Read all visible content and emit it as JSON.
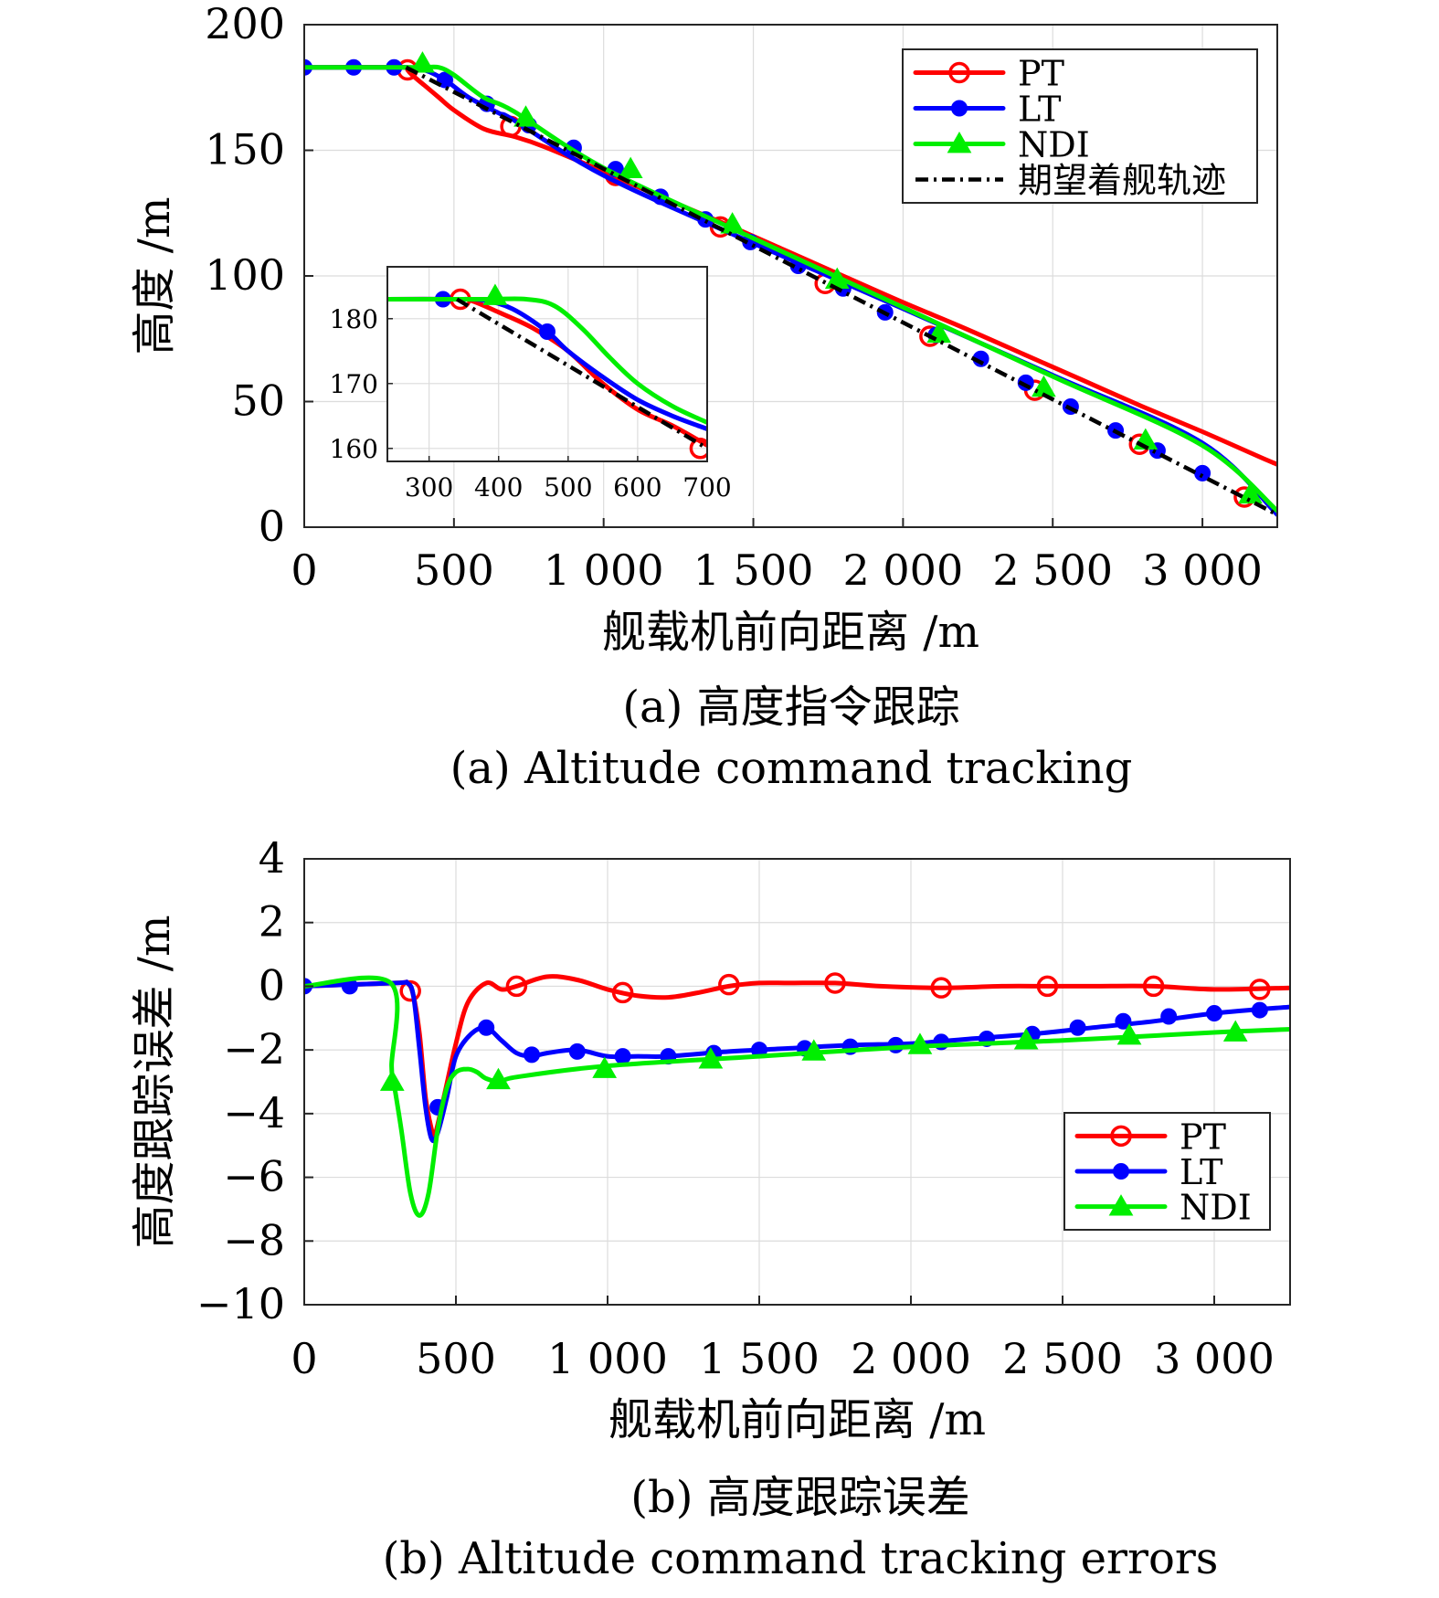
{
  "chart_data": [
    {
      "type": "line",
      "xlabel": "舰载机前向距离 /m",
      "ylabel": "高度 /m",
      "xlim": [
        0,
        3250
      ],
      "ylim": [
        0,
        200
      ],
      "xticks": [
        0,
        500,
        1000,
        1500,
        2000,
        2500,
        3000
      ],
      "xtick_labels": [
        "0",
        "500",
        "1 000",
        "1 500",
        "2 000",
        "2 500",
        "3 000"
      ],
      "yticks": [
        0,
        50,
        100,
        150,
        200
      ],
      "ytick_labels": [
        "0",
        "50",
        "100",
        "150",
        "200"
      ],
      "grid": true,
      "legend_position": "top-right",
      "caption_cn": "(a) 高度指令跟踪",
      "caption_en": "(a) Altitude command tracking",
      "series": [
        {
          "name": "PT",
          "color": "#ff0000",
          "marker": "circle-open",
          "x": [
            0,
            340,
            345,
            360,
            400,
            450,
            500,
            600,
            700,
            800,
            1000,
            1200,
            1400,
            1600,
            1800,
            2000,
            2200,
            2400,
            2600,
            2800,
            3000,
            3200,
            3250
          ],
          "y": [
            183,
            183,
            182,
            180,
            176,
            171,
            166,
            158.5,
            155.5,
            151.5,
            141.5,
            131,
            121,
            110.5,
            100,
            89.5,
            79.5,
            69,
            58.5,
            48,
            38,
            27.5,
            25
          ],
          "markers_x": [
            345,
            690,
            1040,
            1390,
            1740,
            2090,
            2440,
            2790,
            3140
          ],
          "markers_y": [
            182,
            159.5,
            140,
            119.5,
            97,
            76,
            54.5,
            33,
            12
          ]
        },
        {
          "name": "LT",
          "color": "#0000ff",
          "marker": "dot",
          "x": [
            0,
            300,
            340,
            400,
            470,
            550,
            650,
            700,
            1000,
            1500,
            2000,
            2500,
            3000,
            3250
          ],
          "y": [
            183,
            183,
            183,
            182,
            178,
            171,
            164.8,
            162,
            140,
            113,
            87,
            60.5,
            33.5,
            5
          ],
          "markers_x": [
            0,
            165,
            300,
            470,
            610,
            750,
            900,
            1040,
            1190,
            1340,
            1490,
            1650,
            1800,
            1940,
            2110,
            2260,
            2410,
            2560,
            2710,
            2850,
            3000
          ],
          "markers_y": [
            183,
            183,
            183,
            178,
            168.5,
            160,
            151,
            142.5,
            131.5,
            122.5,
            113.5,
            104,
            95,
            85.5,
            76.5,
            67,
            57.5,
            48,
            38.5,
            30.5,
            21.5
          ]
        },
        {
          "name": "NDI",
          "color": "#00ee00",
          "marker": "triangle",
          "x": [
            0,
            340,
            380,
            400,
            450,
            500,
            600,
            700,
            1000,
            1500,
            2000,
            2500,
            3000,
            3250
          ],
          "y": [
            183,
            183,
            183,
            183,
            183,
            180,
            171,
            165.5,
            143,
            115,
            87.5,
            60,
            32.5,
            6.5
          ],
          "markers_x": [
            395,
            740,
            1090,
            1430,
            1780,
            2120,
            2470,
            2810,
            3160
          ],
          "markers_y": [
            184.5,
            163,
            142.5,
            120.5,
            98.5,
            77,
            55.5,
            34.5,
            13
          ]
        },
        {
          "name": "期望着舰轨迹",
          "color": "#000000",
          "dash": "dashdot",
          "x": [
            340,
            3250
          ],
          "y": [
            183,
            5
          ]
        }
      ],
      "inset": {
        "xlim": [
          240,
          700
        ],
        "ylim": [
          158,
          188
        ],
        "xticks": [
          300,
          400,
          500,
          600,
          700
        ],
        "xtick_labels": [
          "300",
          "400",
          "500",
          "600",
          "700"
        ],
        "yticks": [
          160,
          170,
          180
        ],
        "ytick_labels": [
          "160",
          "170",
          "180"
        ],
        "series": [
          {
            "name": "PT",
            "x": [
              240,
              340,
              360,
              400,
              450,
              500,
              550,
              600,
              650,
              700
            ],
            "y": [
              183,
              183,
              182.8,
              181,
              178.5,
              175,
              170,
              166,
              163.5,
              160.5
            ],
            "markers_x": [
              345,
              690
            ],
            "markers_y": [
              183,
              160
            ]
          },
          {
            "name": "LT",
            "x": [
              240,
              340,
              380,
              420,
              470,
              500,
              550,
              600,
              650,
              700
            ],
            "y": [
              183,
              183,
              182.8,
              181.5,
              178,
              175,
              171,
              167.5,
              165,
              163
            ],
            "markers_x": [
              320,
              470
            ],
            "markers_y": [
              183,
              178
            ]
          },
          {
            "name": "NDI",
            "x": [
              240,
              380,
              440,
              480,
              520,
              560,
              600,
              650,
              700
            ],
            "y": [
              183,
              183,
              183,
              182,
              178.5,
              174,
              170,
              166.5,
              164
            ],
            "markers_x": [
              395
            ],
            "markers_y": [
              183.5
            ]
          },
          {
            "name": "期望着舰轨迹",
            "x": [
              340,
              700
            ],
            "y": [
              183,
              160
            ]
          }
        ]
      }
    },
    {
      "type": "line",
      "xlabel": "舰载机前向距离 /m",
      "ylabel": "高度跟踪误差 /m",
      "xlim": [
        0,
        3250
      ],
      "ylim": [
        -10,
        4
      ],
      "xticks": [
        0,
        500,
        1000,
        1500,
        2000,
        2500,
        3000
      ],
      "xtick_labels": [
        "0",
        "500",
        "1 000",
        "1 500",
        "2 000",
        "2 500",
        "3 000"
      ],
      "yticks": [
        -10,
        -8,
        -6,
        -4,
        -2,
        0,
        2,
        4
      ],
      "ytick_labels": [
        "−10",
        "−8",
        "−6",
        "−4",
        "−2",
        "0",
        "2",
        "4"
      ],
      "grid": true,
      "legend_position": "lower-right",
      "caption_cn": "(b) 高度跟踪误差",
      "caption_en": "(b) Altitude command tracking errors",
      "series": [
        {
          "name": "PT",
          "color": "#ff0000",
          "marker": "circle-open",
          "x": [
            0,
            300,
            340,
            360,
            380,
            400,
            420,
            430,
            460,
            500,
            540,
            600,
            650,
            700,
            800,
            900,
            1000,
            1100,
            1200,
            1300,
            1400,
            1500,
            1600,
            1750,
            1900,
            2100,
            2300,
            2450,
            2600,
            2800,
            3000,
            3250
          ],
          "y": [
            0,
            0.1,
            0.1,
            -0.3,
            -1.5,
            -3.5,
            -4.5,
            -4.7,
            -3.5,
            -1.8,
            -0.5,
            0.1,
            -0.1,
            0.0,
            0.3,
            0.2,
            -0.1,
            -0.3,
            -0.35,
            -0.2,
            0.0,
            0.1,
            0.1,
            0.1,
            0.0,
            -0.05,
            0.0,
            0.0,
            0.0,
            0.0,
            -0.1,
            -0.05
          ],
          "markers_x": [
            350,
            700,
            1050,
            1400,
            1750,
            2100,
            2450,
            2800,
            3150
          ],
          "markers_y": [
            -0.15,
            0.0,
            -0.2,
            0.05,
            0.1,
            -0.05,
            0.0,
            0.0,
            -0.1
          ]
        },
        {
          "name": "LT",
          "color": "#0000ff",
          "marker": "dot",
          "x": [
            0,
            300,
            340,
            360,
            380,
            400,
            420,
            440,
            470,
            500,
            550,
            600,
            650,
            700,
            750,
            800,
            900,
            1000,
            1100,
            1200,
            1400,
            1600,
            1800,
            2000,
            2200,
            2400,
            2600,
            2800,
            3000,
            3250
          ],
          "y": [
            0,
            0.1,
            0.1,
            -0.3,
            -2.0,
            -3.8,
            -4.8,
            -4.6,
            -3.5,
            -2.2,
            -1.5,
            -1.3,
            -1.7,
            -2.1,
            -2.2,
            -2.1,
            -2.0,
            -2.2,
            -2.2,
            -2.2,
            -2.05,
            -1.95,
            -1.85,
            -1.8,
            -1.65,
            -1.5,
            -1.3,
            -1.1,
            -0.85,
            -0.65
          ],
          "markers_x": [
            0,
            150,
            440,
            600,
            750,
            900,
            1050,
            1200,
            1350,
            1500,
            1650,
            1800,
            1950,
            2100,
            2250,
            2400,
            2550,
            2700,
            2850,
            3000,
            3150
          ],
          "markers_y": [
            0,
            0.0,
            -3.8,
            -1.3,
            -2.15,
            -2.05,
            -2.2,
            -2.2,
            -2.1,
            -2.0,
            -1.95,
            -1.9,
            -1.85,
            -1.75,
            -1.65,
            -1.5,
            -1.3,
            -1.1,
            -0.95,
            -0.85,
            -0.75
          ]
        },
        {
          "name": "NDI",
          "color": "#00ee00",
          "marker": "triangle",
          "x": [
            0,
            285,
            288,
            295,
            320,
            350,
            380,
            410,
            440,
            470,
            500,
            540,
            570,
            600,
            650,
            700,
            1000,
            1500,
            2000,
            2500,
            3000,
            3250
          ],
          "y": [
            0,
            0.1,
            -2.5,
            -3.0,
            -4.5,
            -6.5,
            -7.2,
            -6.5,
            -4.5,
            -3.2,
            -2.7,
            -2.6,
            -2.7,
            -2.9,
            -3.0,
            -2.85,
            -2.5,
            -2.2,
            -1.9,
            -1.7,
            -1.45,
            -1.35
          ],
          "markers_x": [
            290,
            640,
            990,
            1340,
            1680,
            2030,
            2380,
            2720,
            3070
          ],
          "markers_y": [
            -3.0,
            -2.95,
            -2.6,
            -2.3,
            -2.05,
            -1.85,
            -1.7,
            -1.55,
            -1.45
          ]
        }
      ]
    }
  ]
}
